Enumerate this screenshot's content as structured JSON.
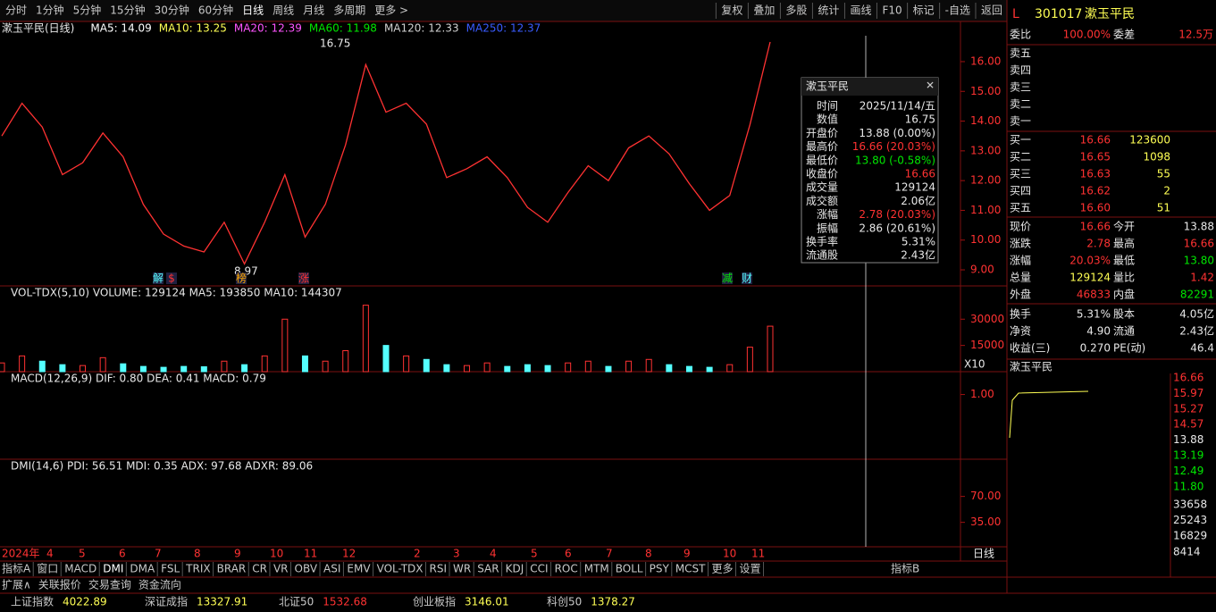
{
  "toolbar": {
    "left": [
      "分时",
      "1分钟",
      "5分钟",
      "15分钟",
      "30分钟",
      "60分钟",
      "日线",
      "周线",
      "月线",
      "多周期",
      "更多 >"
    ],
    "right": [
      "复权",
      "叠加",
      "多股",
      "统计",
      "画线",
      "F10",
      "标记",
      "-自选",
      "返回"
    ]
  },
  "main": {
    "title": "漱玉平民(日线)",
    "ma": [
      {
        "label": "MA5: 14.09",
        "color": "#ffffff"
      },
      {
        "label": "MA10: 13.25",
        "color": "#ffff54"
      },
      {
        "label": "MA20: 12.39",
        "color": "#ff54ff"
      },
      {
        "label": "MA60: 11.98",
        "color": "#00e600"
      },
      {
        "label": "MA120: 12.33",
        "color": "#d0d0d0"
      },
      {
        "label": "MA250: 12.37",
        "color": "#3a5cff"
      }
    ],
    "high_label": "16.75",
    "low_label": "8.97",
    "markers": [
      "解",
      "$",
      "榜",
      "涨",
      "减",
      "财"
    ],
    "closes": [
      13.5,
      14.6,
      13.8,
      12.2,
      12.6,
      13.6,
      12.8,
      11.2,
      10.2,
      9.8,
      9.6,
      10.6,
      9.2,
      10.6,
      12.2,
      10.1,
      11.2,
      13.2,
      15.9,
      14.3,
      14.6,
      13.9,
      12.1,
      12.4,
      12.8,
      12.1,
      11.1,
      10.6,
      11.6,
      12.5,
      12.0,
      13.1,
      13.5,
      12.9,
      11.9,
      11.0,
      11.5,
      13.88,
      16.66
    ],
    "ylim": [
      8.46,
      16.87
    ],
    "yticks": [
      {
        "value": 16,
        "label": "16.00"
      },
      {
        "value": 15,
        "label": "15.00"
      },
      {
        "value": 14,
        "label": "14.00"
      },
      {
        "value": 13,
        "label": "13.00"
      },
      {
        "value": 12,
        "label": "12.00"
      },
      {
        "value": 11,
        "label": "11.00"
      },
      {
        "value": 10,
        "label": "10.00"
      },
      {
        "value": 9,
        "label": "9.00"
      }
    ]
  },
  "volume": {
    "header": "VOL-TDX(5,10) VOLUME: 129124 MA5: 193850 MA10: 144307",
    "values": [
      5000,
      9000,
      6000,
      4000,
      3500,
      8000,
      4500,
      3000,
      2500,
      3000,
      2800,
      6000,
      4000,
      9000,
      30000,
      9000,
      6000,
      12000,
      38000,
      15000,
      9000,
      7000,
      4000,
      3500,
      5000,
      3000,
      4000,
      3500,
      5000,
      6000,
      3000,
      6000,
      7000,
      4000,
      3000,
      2500,
      4000,
      14000,
      26000
    ],
    "ylim": [
      0,
      40860
    ],
    "yticks": [
      30000,
      15000
    ],
    "unit": "X10"
  },
  "macd": {
    "header": "MACD(12,26,9) DIF: 0.80 DEA: 0.41 MACD: 0.79",
    "ylim": [
      -0.7,
      1.6
    ],
    "yticks": [
      {
        "value": 1,
        "label": "1.00"
      }
    ]
  },
  "dmi": {
    "header": "DMI(14,6) PDI: 56.51 MDI: 0.35 ADX: 97.68 ADXR: 89.06",
    "ylim": [
      2,
      113
    ],
    "yticks": [
      {
        "value": 70,
        "label": "70.00"
      },
      {
        "value": 35,
        "label": "35.00"
      }
    ]
  },
  "time_axis": {
    "labels": [
      "2024年",
      "4",
      "5",
      "6",
      "7",
      "8",
      "9",
      "10",
      "11",
      "12",
      "2",
      "3",
      "4",
      "5",
      "6",
      "7",
      "8",
      "9",
      "10",
      "11"
    ],
    "period": "日线"
  },
  "tooltip": {
    "title": "漱玉平民",
    "rows": [
      [
        "时间",
        "2025/11/14/五"
      ],
      [
        "数值",
        "16.75"
      ],
      [
        "开盘价",
        "13.88 (0.00%)"
      ],
      [
        "最高价",
        "16.66 (20.03%)"
      ],
      [
        "最低价",
        "13.80 (-0.58%)"
      ],
      [
        "收盘价",
        "16.66"
      ],
      [
        "成交量",
        "129124"
      ],
      [
        "成交额",
        "2.06亿"
      ],
      [
        "涨幅",
        "2.78 (20.03%)"
      ],
      [
        "振幅",
        "2.86 (20.61%)"
      ],
      [
        "换手率",
        "5.31%"
      ],
      [
        "流通股",
        "2.43亿"
      ]
    ]
  },
  "quote": {
    "code": "301017",
    "name": "漱玉平民",
    "weibi": [
      "委比",
      "100.00%",
      "委差",
      "12.5万"
    ],
    "sell": [
      "卖五",
      "卖四",
      "卖三",
      "卖二",
      "卖一"
    ],
    "buy": [
      [
        "买一",
        "16.66",
        "123600"
      ],
      [
        "买二",
        "16.65",
        "1098"
      ],
      [
        "买三",
        "16.63",
        "55"
      ],
      [
        "买四",
        "16.62",
        "2"
      ],
      [
        "买五",
        "16.60",
        "51"
      ]
    ],
    "stats": [
      [
        "现价",
        "16.66",
        "今开",
        "13.88"
      ],
      [
        "涨跌",
        "2.78",
        "最高",
        "16.66"
      ],
      [
        "涨幅",
        "20.03%",
        "最低",
        "13.80"
      ],
      [
        "总量",
        "129124",
        "量比",
        "1.42"
      ],
      [
        "外盘",
        "46833",
        "内盘",
        "82291"
      ],
      [
        "换手",
        "5.31%",
        "股本",
        "4.05亿"
      ],
      [
        "净资",
        "4.90",
        "流通",
        "2.43亿"
      ],
      [
        "收益(三)",
        "0.270",
        "PE(动)",
        "46.4"
      ]
    ],
    "mini_title": "漱玉平民",
    "mini_price_ticks": [
      "16.66",
      "15.97",
      "15.27",
      "14.57",
      "13.88",
      "13.19",
      "12.49",
      "11.80"
    ],
    "mini_vol_ticks": [
      "33658",
      "25243",
      "16829",
      "8414"
    ]
  },
  "tabs": [
    "指标A",
    "窗口",
    "MACD",
    "DMI",
    "DMA",
    "FSL",
    "TRIX",
    "BRAR",
    "CR",
    "VR",
    "OBV",
    "ASI",
    "EMV",
    "VOL-TDX",
    "RSI",
    "WR",
    "SAR",
    "KDJ",
    "CCI",
    "ROC",
    "MTM",
    "BOLL",
    "PSY",
    "MCST",
    "更多",
    "设置"
  ],
  "tab_right": "指标B",
  "row2": [
    "扩展∧",
    "关联报价",
    "交易查询",
    "资金流向"
  ],
  "indices": [
    [
      "上证指数",
      "4022.89"
    ],
    [
      "深证成指",
      "13327.91"
    ],
    [
      "北证50",
      "1532.68"
    ],
    [
      "创业板指",
      "3146.01"
    ],
    [
      "科创50",
      "1378.27"
    ]
  ]
}
